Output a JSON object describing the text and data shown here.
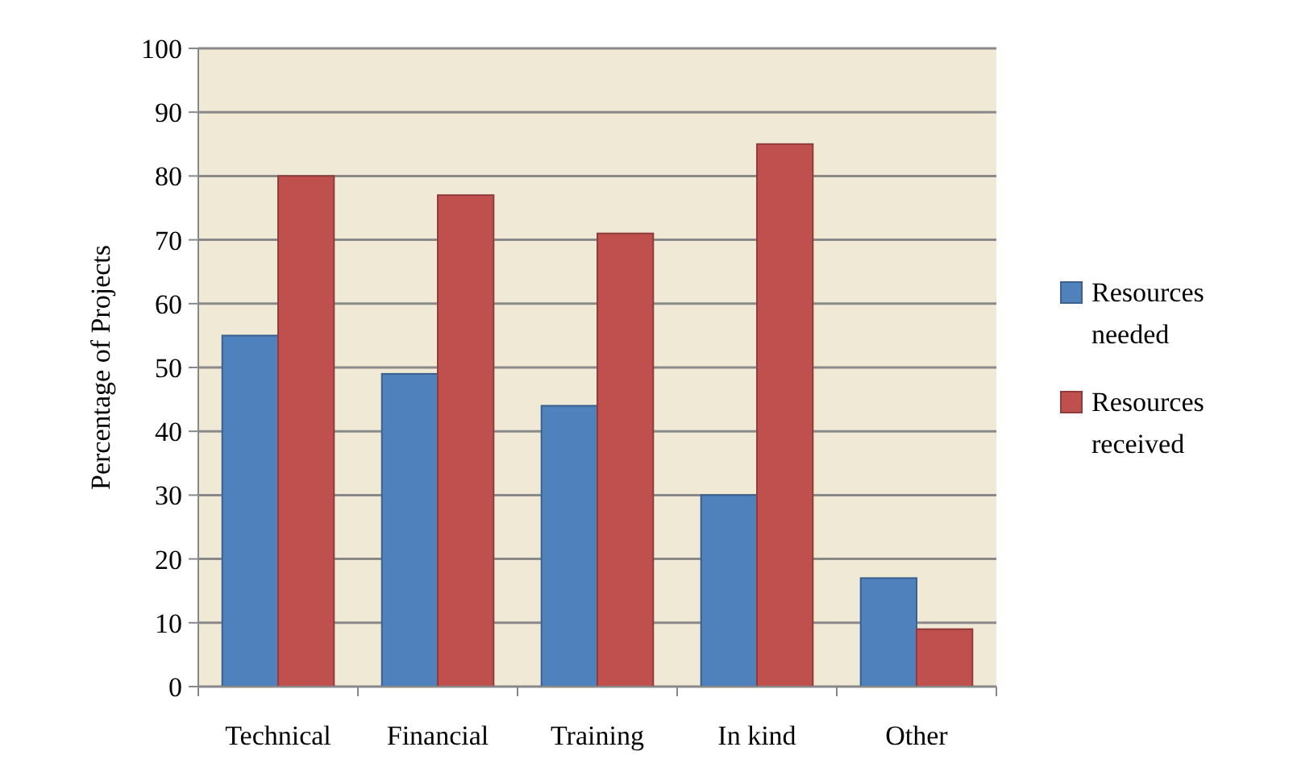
{
  "chart_data": {
    "type": "bar",
    "ylabel": "Percentage of Projects",
    "categories": [
      "Technical",
      "Financial",
      "Training",
      "In kind",
      "Other"
    ],
    "series": [
      {
        "name": "Resources needed",
        "color": "#4f81bd",
        "values": [
          55,
          49,
          44,
          30,
          17
        ]
      },
      {
        "name": "Resources received",
        "color": "#c0504d",
        "values": [
          80,
          77,
          71,
          85,
          9
        ]
      }
    ],
    "ylim": [
      0,
      100
    ],
    "yticks": [
      0,
      10,
      20,
      30,
      40,
      50,
      60,
      70,
      80,
      90,
      100
    ],
    "grid": "y",
    "legend": "right"
  }
}
